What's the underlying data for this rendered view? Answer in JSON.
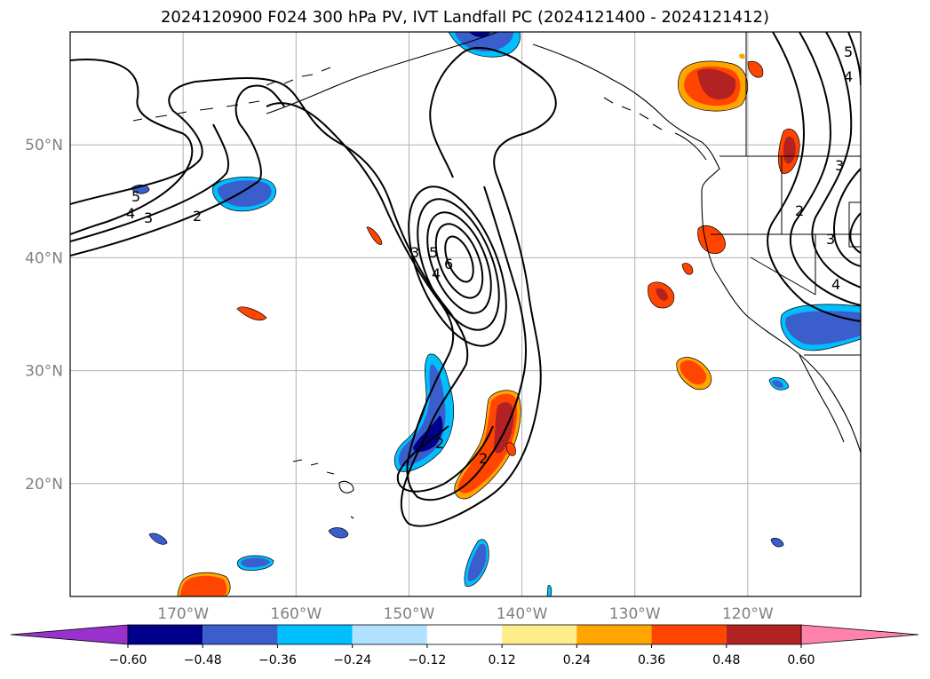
{
  "title": "2024120900 F024 300 hPa PV, IVT Landfall PC (2024121400 - 2024121412)",
  "map": {
    "lon_range": [
      -180,
      -110
    ],
    "lat_range": [
      10,
      60
    ],
    "lat_labels": [
      "50°N",
      "40°N",
      "30°N",
      "20°N"
    ],
    "lat_values": [
      50,
      40,
      30,
      20
    ],
    "lon_labels": [
      "170°W",
      "160°W",
      "150°W",
      "140°W",
      "130°W",
      "120°W"
    ],
    "lon_values": [
      -170,
      -160,
      -150,
      -140,
      -130,
      -120
    ],
    "gridlines": true
  },
  "contour_labels": [
    {
      "text": "5"
    },
    {
      "text": "4"
    },
    {
      "text": "3"
    },
    {
      "text": "2"
    },
    {
      "text": "3"
    },
    {
      "text": "5"
    },
    {
      "text": "6"
    },
    {
      "text": "4"
    },
    {
      "text": "2"
    },
    {
      "text": "2"
    },
    {
      "text": "3"
    },
    {
      "text": "2"
    },
    {
      "text": "4"
    },
    {
      "text": "5"
    },
    {
      "text": "4"
    },
    {
      "text": "3"
    }
  ],
  "colorbar": {
    "ticks": [
      "−0.60",
      "−0.48",
      "−0.36",
      "−0.24",
      "−0.12",
      "0.12",
      "0.24",
      "0.36",
      "0.48",
      "0.60"
    ],
    "colors": [
      "#9932cc",
      "#00008b",
      "#3a5fcd",
      "#00bfff",
      "#b0e2ff",
      "#ffffff",
      "#ffec8b",
      "#ffa500",
      "#ff4500",
      "#b22222",
      "#ff82ab"
    ],
    "extend": "both"
  }
}
